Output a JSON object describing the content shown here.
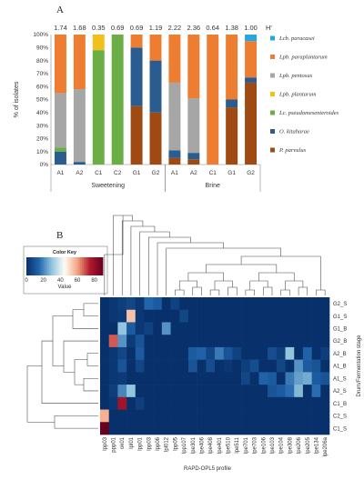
{
  "figure": {
    "panel_a_label": "A",
    "panel_b_label": "B",
    "h_index_label": "H'"
  },
  "chart_data": [
    {
      "type": "bar",
      "stacked": true,
      "ylabel": "% of isolates",
      "ylim": [
        0,
        100
      ],
      "yticks": [
        "0%",
        "10%",
        "20%",
        "30%",
        "40%",
        "50%",
        "60%",
        "70%",
        "80%",
        "90%",
        "100%"
      ],
      "categories": [
        "A1",
        "A2",
        "C1",
        "C2",
        "G1",
        "G2",
        "A1",
        "A2",
        "C1",
        "G1",
        "G2"
      ],
      "groups": [
        {
          "name": "Sweetening",
          "count": 6
        },
        {
          "name": "Brine",
          "count": 5
        }
      ],
      "h_values": [
        "1.74",
        "1.68",
        "0.35",
        "0.69",
        "0.69",
        "1.19",
        "2.22",
        "2.36",
        "0.64",
        "1.38",
        "1.00"
      ],
      "legend_position": "right",
      "series": [
        {
          "name": "P. parvulus",
          "color": "#9e4a12",
          "values": [
            0,
            0,
            0,
            0,
            45,
            40,
            5,
            4,
            0,
            44,
            63
          ]
        },
        {
          "name": "O. kitaharae",
          "color": "#2a5c8f",
          "values": [
            10,
            2,
            0,
            0,
            45,
            40,
            6,
            5,
            0,
            6,
            4
          ]
        },
        {
          "name": "Lc. pseudomesenteroides",
          "color": "#6aae45",
          "values": [
            3,
            0,
            88,
            100,
            0,
            0,
            0,
            0,
            0,
            0,
            0
          ]
        },
        {
          "name": "Lpb. plantarum",
          "color": "#f2c01a",
          "values": [
            0,
            0,
            12,
            0,
            0,
            0,
            0,
            0,
            0,
            0,
            0
          ]
        },
        {
          "name": "Lpb. pentosus",
          "color": "#a6a6a6",
          "values": [
            42,
            56,
            0,
            0,
            0,
            0,
            52,
            42,
            0,
            0,
            0
          ]
        },
        {
          "name": "Lpb. paraplantarum",
          "color": "#ed7d31",
          "values": [
            45,
            42,
            0,
            0,
            10,
            20,
            37,
            49,
            100,
            50,
            28
          ]
        },
        {
          "name": "Lcb. paracasei",
          "color": "#2aa6de",
          "values": [
            0,
            0,
            0,
            0,
            0,
            0,
            0,
            0,
            0,
            0,
            5
          ]
        }
      ]
    },
    {
      "type": "heatmap",
      "xlabel": "RAPD-OPL5 profile",
      "ylabel": "Drum/Fermentation stage",
      "color_key": {
        "title": "Color Key",
        "xlabel": "Value",
        "ticks": [
          "0",
          "20",
          "40",
          "60",
          "80"
        ],
        "range": [
          0,
          90
        ],
        "stops": [
          "#08306b",
          "#2166ac",
          "#92c5de",
          "#fdfdf6",
          "#f4a582",
          "#b2182b",
          "#67001f"
        ]
      },
      "columns": [
        "lpp03",
        "ppp01",
        "ok01",
        "lpl01",
        "lpp01",
        "lpp03",
        "lpp06",
        "lpl012",
        "lpp05",
        "lpp107",
        "lpe301",
        "lpe406",
        "lpe408",
        "lpe401",
        "lpe510",
        "lpe511",
        "lpe701",
        "lpe703",
        "lpe106",
        "lpe103",
        "lpe104",
        "lpe308",
        "lpe206",
        "lpe205",
        "lpe134",
        "lpe206a"
      ],
      "rows": [
        "G2_S",
        "G1_S",
        "G1_B",
        "G2_B",
        "A2_B",
        "A1_B",
        "A1_S",
        "A2_S",
        "C1_B",
        "C2_S",
        "C1_S"
      ],
      "values": [
        [
          0,
          2,
          4,
          6,
          2,
          15,
          12,
          0,
          5,
          0,
          0,
          0,
          0,
          0,
          0,
          0,
          0,
          0,
          0,
          0,
          0,
          0,
          0,
          0,
          0,
          0
        ],
        [
          0,
          2,
          3,
          55,
          2,
          0,
          0,
          0,
          0,
          6,
          0,
          0,
          0,
          0,
          0,
          0,
          0,
          0,
          0,
          0,
          0,
          0,
          0,
          0,
          0,
          0
        ],
        [
          0,
          0,
          30,
          12,
          2,
          5,
          0,
          22,
          0,
          0,
          0,
          0,
          0,
          0,
          0,
          0,
          0,
          0,
          0,
          0,
          0,
          0,
          0,
          0,
          0,
          0
        ],
        [
          0,
          68,
          22,
          3,
          10,
          0,
          0,
          0,
          0,
          0,
          0,
          0,
          0,
          0,
          0,
          0,
          0,
          0,
          0,
          0,
          0,
          0,
          0,
          0,
          0,
          0
        ],
        [
          0,
          2,
          6,
          0,
          12,
          0,
          0,
          0,
          0,
          0,
          12,
          14,
          6,
          18,
          10,
          5,
          0,
          0,
          0,
          8,
          4,
          30,
          0,
          14,
          0,
          4
        ],
        [
          0,
          2,
          10,
          0,
          6,
          0,
          0,
          0,
          0,
          0,
          10,
          0,
          8,
          0,
          2,
          0,
          4,
          8,
          0,
          0,
          6,
          0,
          22,
          12,
          10,
          0
        ],
        [
          0,
          2,
          3,
          0,
          0,
          0,
          0,
          0,
          0,
          0,
          0,
          0,
          0,
          0,
          0,
          0,
          6,
          0,
          14,
          12,
          0,
          18,
          24,
          26,
          12,
          10
        ],
        [
          0,
          4,
          20,
          30,
          0,
          0,
          0,
          0,
          0,
          0,
          0,
          0,
          0,
          0,
          0,
          0,
          0,
          0,
          0,
          10,
          12,
          16,
          28,
          0,
          16,
          0
        ],
        [
          0,
          2,
          78,
          0,
          4,
          0,
          0,
          0,
          0,
          0,
          0,
          0,
          0,
          0,
          0,
          0,
          0,
          0,
          0,
          0,
          0,
          0,
          0,
          0,
          0,
          0
        ],
        [
          58,
          0,
          0,
          0,
          0,
          0,
          0,
          0,
          0,
          0,
          0,
          0,
          0,
          0,
          0,
          0,
          0,
          0,
          0,
          0,
          0,
          0,
          0,
          0,
          0,
          0
        ],
        [
          90,
          0,
          0,
          0,
          0,
          0,
          0,
          0,
          0,
          0,
          0,
          0,
          0,
          0,
          0,
          0,
          0,
          0,
          0,
          0,
          0,
          0,
          0,
          0,
          0,
          0
        ]
      ]
    }
  ]
}
